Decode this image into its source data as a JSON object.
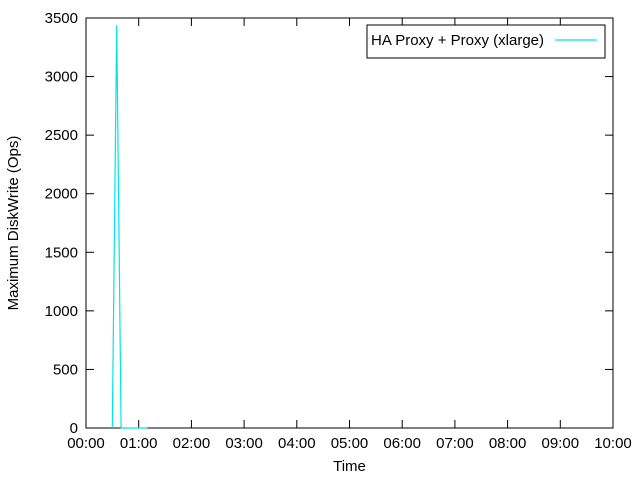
{
  "chart_data": {
    "type": "line",
    "title": "",
    "xlabel": "Time",
    "ylabel": "Maximum DiskWrite (Ops)",
    "xlim": [
      "00:00",
      "10:00"
    ],
    "ylim": [
      0,
      3500
    ],
    "x_ticks": [
      "00:00",
      "01:00",
      "02:00",
      "03:00",
      "04:00",
      "05:00",
      "06:00",
      "07:00",
      "08:00",
      "09:00",
      "10:00"
    ],
    "y_ticks": [
      0,
      500,
      1000,
      1500,
      2000,
      2500,
      3000,
      3500
    ],
    "grid": false,
    "legend_position": "top-right",
    "series": [
      {
        "name": "HA Proxy + Proxy (xlarge)",
        "color": "#00e5e5",
        "x": [
          "00:30",
          "00:35",
          "00:40",
          "01:10"
        ],
        "y": [
          0,
          3440,
          0,
          0
        ]
      }
    ]
  }
}
